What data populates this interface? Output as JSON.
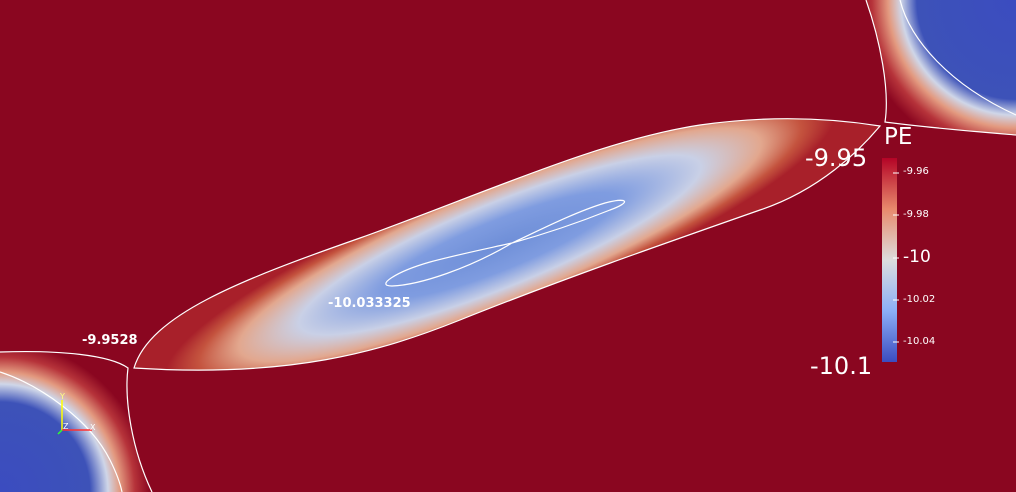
{
  "scalar_field": "PE",
  "colormap": {
    "high_color": "#8a0620",
    "mid_color": "#dddddd",
    "low_color": "#3b4cc0"
  },
  "annotations": {
    "saddle_left": "-9.9528",
    "minimum_center": "-10.033325"
  },
  "legend": {
    "title": "PE",
    "range_max": "-9.95",
    "range_min": "-10.1",
    "ticks": [
      "-9.96",
      "-9.98",
      "-10",
      "-10.02",
      "-10.04"
    ]
  },
  "axes_triad": {
    "x_label": "X",
    "y_label": "Y",
    "z_label": "Z"
  }
}
